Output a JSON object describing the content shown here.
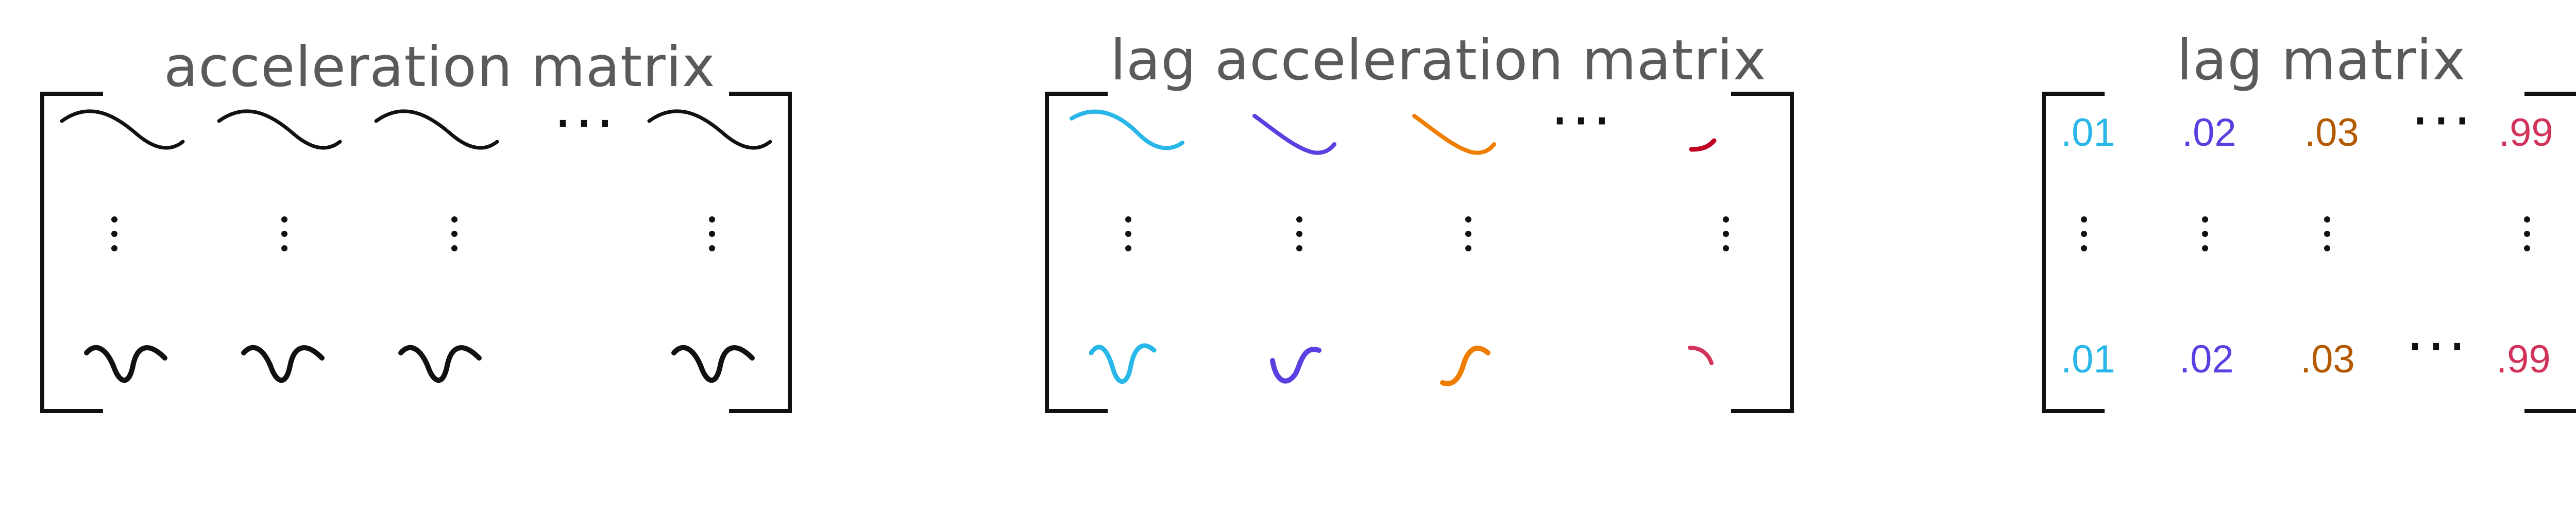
{
  "panels": {
    "acceleration": {
      "title": "acceleration matrix",
      "stroke": "#111111",
      "ellipsis": "···"
    },
    "lag_acceleration": {
      "title": "lag acceleration matrix",
      "ellipsis": "···",
      "column_colors": [
        "#29b6e8",
        "#5b3fe0",
        "#ef7d00",
        "#c00020"
      ]
    },
    "lag": {
      "title": "lag matrix",
      "ellipsis": "···",
      "top_row": [
        ".01",
        ".02",
        ".03",
        ".99"
      ],
      "bottom_row": [
        ".01",
        ".02",
        ".03",
        ".99"
      ],
      "column_colors": [
        "#29b6e8",
        "#5b3fe0",
        "#b35a00",
        "#d2335a"
      ]
    }
  }
}
